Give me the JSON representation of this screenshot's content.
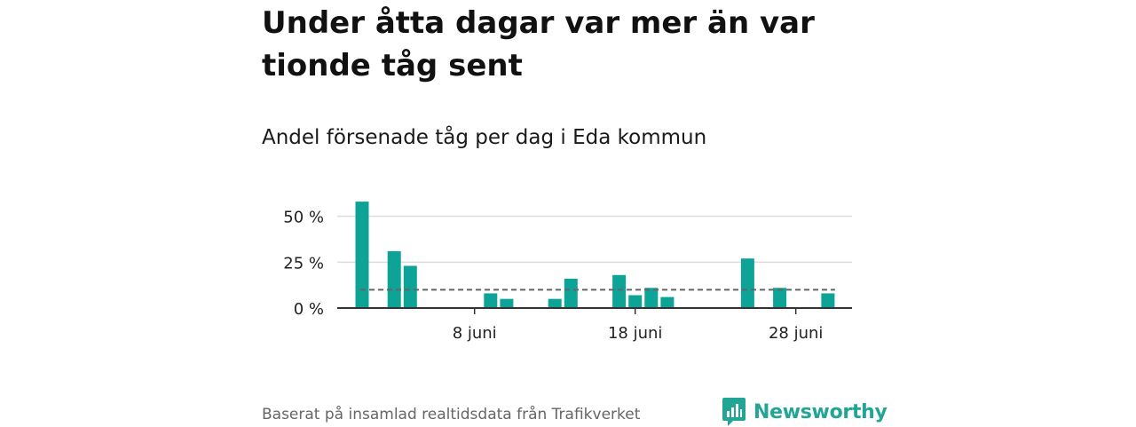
{
  "title": "Under åtta dagar var mer än var tionde tåg sent",
  "subtitle": "Andel försenade tåg per dag i Eda kommun",
  "source": "Baserat på insamlad realtidsdata från Trafikverket",
  "brand": "Newsworthy",
  "colors": {
    "bar": "#0ea397",
    "average_line": "#666666",
    "grid": "#dddddd",
    "brand": "#23a596"
  },
  "chart_data": {
    "type": "bar",
    "x_unit": "day of June",
    "x": [
      1,
      2,
      3,
      4,
      5,
      6,
      7,
      8,
      9,
      10,
      11,
      12,
      13,
      14,
      15,
      16,
      17,
      18,
      19,
      20,
      21,
      22,
      23,
      24,
      25,
      26,
      27,
      28,
      29,
      30
    ],
    "values": [
      58,
      0,
      31,
      23,
      0,
      0,
      0,
      0,
      8,
      5,
      0,
      0,
      5,
      16,
      0,
      0,
      18,
      7,
      11,
      6,
      0,
      0,
      0,
      0,
      27,
      0,
      11,
      0,
      0,
      8
    ],
    "average": 10,
    "yticks": [
      0,
      25,
      50
    ],
    "ytick_labels": [
      "0 %",
      "25 %",
      "50 %"
    ],
    "xticks": [
      8,
      18,
      28
    ],
    "xtick_labels": [
      "8 juni",
      "18 juni",
      "28 juni"
    ],
    "ylim": [
      0,
      60
    ],
    "grid": true
  }
}
